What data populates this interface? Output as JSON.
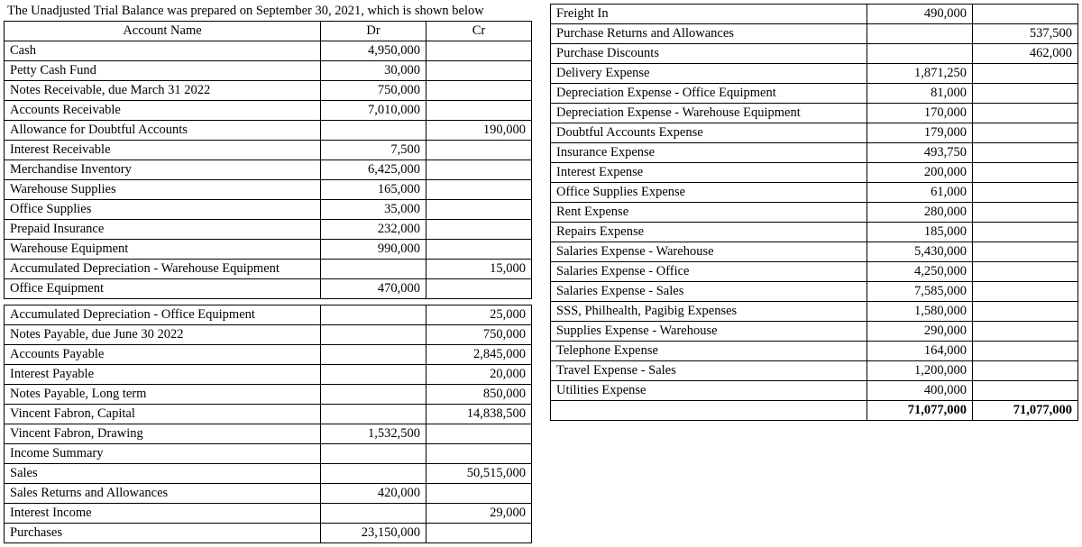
{
  "title": "The Unadjusted Trial Balance was prepared on September 30, 2021, which is shown below",
  "headers": {
    "account": "Account Name",
    "dr": "Dr",
    "cr": "Cr"
  },
  "left_block1": [
    {
      "name": "Cash",
      "dr": "4,950,000",
      "cr": ""
    },
    {
      "name": "Petty Cash Fund",
      "dr": "30,000",
      "cr": ""
    },
    {
      "name": "Notes Receivable, due March 31 2022",
      "dr": "750,000",
      "cr": ""
    },
    {
      "name": "Accounts Receivable",
      "dr": "7,010,000",
      "cr": ""
    },
    {
      "name": "Allowance for Doubtful Accounts",
      "dr": "",
      "cr": "190,000"
    },
    {
      "name": "Interest Receivable",
      "dr": "7,500",
      "cr": ""
    },
    {
      "name": "Merchandise Inventory",
      "dr": "6,425,000",
      "cr": ""
    },
    {
      "name": "Warehouse Supplies",
      "dr": "165,000",
      "cr": ""
    },
    {
      "name": "Office Supplies",
      "dr": "35,000",
      "cr": ""
    },
    {
      "name": "Prepaid Insurance",
      "dr": "232,000",
      "cr": ""
    },
    {
      "name": "Warehouse Equipment",
      "dr": "990,000",
      "cr": ""
    },
    {
      "name": "Accumulated Depreciation - Warehouse Equipment",
      "dr": "",
      "cr": "15,000"
    },
    {
      "name": "Office Equipment",
      "dr": "470,000",
      "cr": ""
    }
  ],
  "left_block2": [
    {
      "name": "Accumulated Depreciation - Office Equipment",
      "dr": "",
      "cr": "25,000"
    },
    {
      "name": "Notes Payable, due June 30 2022",
      "dr": "",
      "cr": "750,000"
    },
    {
      "name": "Accounts Payable",
      "dr": "",
      "cr": "2,845,000"
    },
    {
      "name": "Interest Payable",
      "dr": "",
      "cr": "20,000"
    },
    {
      "name": "Notes Payable, Long term",
      "dr": "",
      "cr": "850,000"
    },
    {
      "name": "Vincent Fabron, Capital",
      "dr": "",
      "cr": "14,838,500"
    },
    {
      "name": "Vincent Fabron, Drawing",
      "dr": "1,532,500",
      "cr": ""
    },
    {
      "name": "Income Summary",
      "dr": "",
      "cr": ""
    },
    {
      "name": "Sales",
      "dr": "",
      "cr": "50,515,000"
    },
    {
      "name": "Sales Returns and Allowances",
      "dr": "420,000",
      "cr": ""
    },
    {
      "name": "Interest Income",
      "dr": "",
      "cr": "29,000"
    },
    {
      "name": "Purchases",
      "dr": "23,150,000",
      "cr": ""
    }
  ],
  "right_block": [
    {
      "name": "Freight In",
      "dr": "490,000",
      "cr": ""
    },
    {
      "name": "Purchase Returns and Allowances",
      "dr": "",
      "cr": "537,500"
    },
    {
      "name": "Purchase Discounts",
      "dr": "",
      "cr": "462,000"
    },
    {
      "name": "Delivery Expense",
      "dr": "1,871,250",
      "cr": ""
    },
    {
      "name": "Depreciation Expense - Office Equipment",
      "dr": "81,000",
      "cr": ""
    },
    {
      "name": "Depreciation Expense - Warehouse Equipment",
      "dr": "170,000",
      "cr": ""
    },
    {
      "name": "Doubtful Accounts Expense",
      "dr": "179,000",
      "cr": ""
    },
    {
      "name": "Insurance Expense",
      "dr": "493,750",
      "cr": ""
    },
    {
      "name": "Interest Expense",
      "dr": "200,000",
      "cr": ""
    },
    {
      "name": "Office Supplies Expense",
      "dr": "61,000",
      "cr": ""
    },
    {
      "name": "Rent Expense",
      "dr": "280,000",
      "cr": ""
    },
    {
      "name": "Repairs Expense",
      "dr": "185,000",
      "cr": ""
    },
    {
      "name": "Salaries Expense  - Warehouse",
      "dr": "5,430,000",
      "cr": ""
    },
    {
      "name": "Salaries Expense - Office",
      "dr": "4,250,000",
      "cr": ""
    },
    {
      "name": "Salaries Expense - Sales",
      "dr": "7,585,000",
      "cr": ""
    },
    {
      "name": "SSS, Philhealth, Pagibig Expenses",
      "dr": "1,580,000",
      "cr": ""
    },
    {
      "name": "Supplies Expense - Warehouse",
      "dr": "290,000",
      "cr": ""
    },
    {
      "name": "Telephone Expense",
      "dr": "164,000",
      "cr": ""
    },
    {
      "name": "Travel Expense - Sales",
      "dr": "1,200,000",
      "cr": ""
    },
    {
      "name": "Utilities Expense",
      "dr": "400,000",
      "cr": ""
    }
  ],
  "totals": {
    "dr": "71,077,000",
    "cr": "71,077,000"
  },
  "style": {
    "font_family": "Times New Roman",
    "font_size_pt": 11,
    "border_color": "#000000",
    "background": "#ffffff",
    "col_widths": {
      "name_pct": 60,
      "dr_pct": 20,
      "cr_pct": 20
    }
  }
}
